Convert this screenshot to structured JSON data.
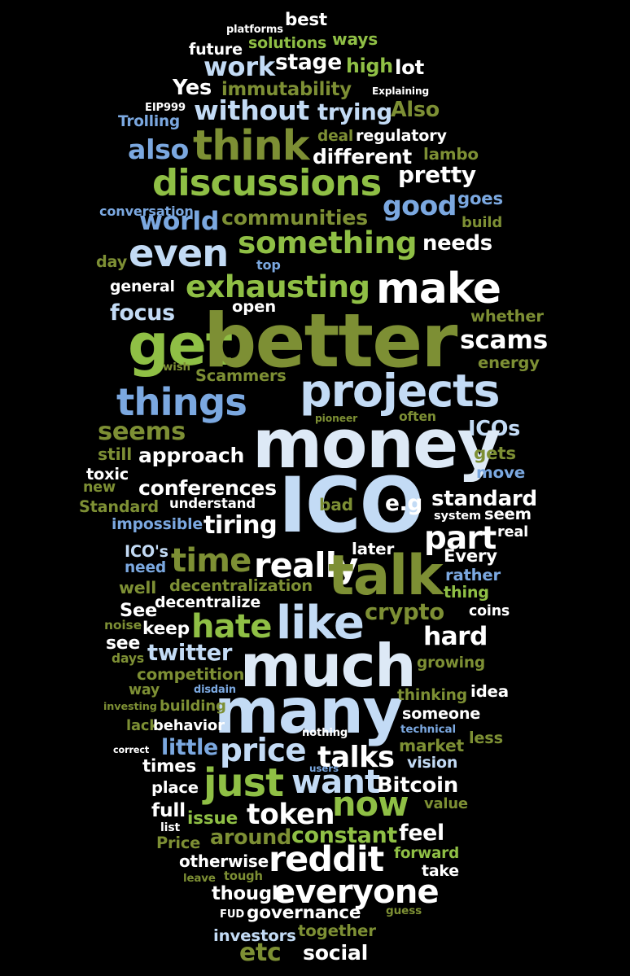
{
  "palette": {
    "background": "#000000",
    "olive": "#7d8f34",
    "green": "#8fbf45",
    "white": "#ffffff",
    "light_blue": "#c3dbf5",
    "blue": "#7ba8e0",
    "pale": "#dde9f6"
  },
  "words": [
    {
      "text": "platforms",
      "color": "white"
    },
    {
      "text": "best",
      "color": "white"
    },
    {
      "text": "future",
      "color": "white"
    },
    {
      "text": "solutions",
      "color": "green"
    },
    {
      "text": "ways",
      "color": "green"
    },
    {
      "text": "work",
      "color": "light_blue"
    },
    {
      "text": "stage",
      "color": "white"
    },
    {
      "text": "high",
      "color": "green"
    },
    {
      "text": "lot",
      "color": "white"
    },
    {
      "text": "Yes",
      "color": "white"
    },
    {
      "text": "immutability",
      "color": "olive"
    },
    {
      "text": "Explaining",
      "color": "white"
    },
    {
      "text": "EIP999",
      "color": "white"
    },
    {
      "text": "without",
      "color": "light_blue"
    },
    {
      "text": "trying",
      "color": "light_blue"
    },
    {
      "text": "Also",
      "color": "olive"
    },
    {
      "text": "Trolling",
      "color": "blue"
    },
    {
      "text": "think",
      "color": "olive"
    },
    {
      "text": "deal",
      "color": "olive"
    },
    {
      "text": "regulatory",
      "color": "white"
    },
    {
      "text": "also",
      "color": "blue"
    },
    {
      "text": "different",
      "color": "white"
    },
    {
      "text": "lambo",
      "color": "olive"
    },
    {
      "text": "discussions",
      "color": "green"
    },
    {
      "text": "pretty",
      "color": "white"
    },
    {
      "text": "conversation",
      "color": "blue"
    },
    {
      "text": "good",
      "color": "blue"
    },
    {
      "text": "goes",
      "color": "blue"
    },
    {
      "text": "world",
      "color": "blue"
    },
    {
      "text": "communities",
      "color": "olive"
    },
    {
      "text": "build",
      "color": "olive"
    },
    {
      "text": "even",
      "color": "light_blue"
    },
    {
      "text": "something",
      "color": "green"
    },
    {
      "text": "needs",
      "color": "white"
    },
    {
      "text": "day",
      "color": "olive"
    },
    {
      "text": "top",
      "color": "blue"
    },
    {
      "text": "general",
      "color": "white"
    },
    {
      "text": "exhausting",
      "color": "green"
    },
    {
      "text": "make",
      "color": "white"
    },
    {
      "text": "focus",
      "color": "light_blue"
    },
    {
      "text": "open",
      "color": "white"
    },
    {
      "text": "whether",
      "color": "olive"
    },
    {
      "text": "get",
      "color": "green"
    },
    {
      "text": "better",
      "color": "olive"
    },
    {
      "text": "scams",
      "color": "white"
    },
    {
      "text": "wish",
      "color": "olive"
    },
    {
      "text": "Scammers",
      "color": "olive"
    },
    {
      "text": "energy",
      "color": "olive"
    },
    {
      "text": "things",
      "color": "blue"
    },
    {
      "text": "projects",
      "color": "light_blue"
    },
    {
      "text": "seems",
      "color": "olive"
    },
    {
      "text": "pioneer",
      "color": "olive"
    },
    {
      "text": "often",
      "color": "olive"
    },
    {
      "text": "ICOs",
      "color": "light_blue"
    },
    {
      "text": "money",
      "color": "pale"
    },
    {
      "text": "still",
      "color": "olive"
    },
    {
      "text": "approach",
      "color": "white"
    },
    {
      "text": "gets",
      "color": "olive"
    },
    {
      "text": "toxic",
      "color": "white"
    },
    {
      "text": "move",
      "color": "blue"
    },
    {
      "text": "new",
      "color": "olive"
    },
    {
      "text": "conferences",
      "color": "white"
    },
    {
      "text": "ICO",
      "color": "light_blue"
    },
    {
      "text": "standard",
      "color": "white"
    },
    {
      "text": "Standard",
      "color": "olive"
    },
    {
      "text": "understand",
      "color": "white"
    },
    {
      "text": "bad",
      "color": "olive"
    },
    {
      "text": "e.g",
      "color": "white"
    },
    {
      "text": "system",
      "color": "white"
    },
    {
      "text": "seem",
      "color": "white"
    },
    {
      "text": "impossible",
      "color": "blue"
    },
    {
      "text": "tiring",
      "color": "white"
    },
    {
      "text": "part",
      "color": "white"
    },
    {
      "text": "real",
      "color": "white"
    },
    {
      "text": "ICO's",
      "color": "light_blue"
    },
    {
      "text": "later",
      "color": "white"
    },
    {
      "text": "need",
      "color": "blue"
    },
    {
      "text": "time",
      "color": "olive"
    },
    {
      "text": "Every",
      "color": "white"
    },
    {
      "text": "really",
      "color": "white"
    },
    {
      "text": "talk",
      "color": "olive"
    },
    {
      "text": "rather",
      "color": "blue"
    },
    {
      "text": "well",
      "color": "olive"
    },
    {
      "text": "decentralization",
      "color": "olive"
    },
    {
      "text": "thing",
      "color": "green"
    },
    {
      "text": "decentralize",
      "color": "white"
    },
    {
      "text": "See",
      "color": "white"
    },
    {
      "text": "crypto",
      "color": "olive"
    },
    {
      "text": "coins",
      "color": "white"
    },
    {
      "text": "noise",
      "color": "olive"
    },
    {
      "text": "keep",
      "color": "white"
    },
    {
      "text": "hate",
      "color": "green"
    },
    {
      "text": "like",
      "color": "light_blue"
    },
    {
      "text": "see",
      "color": "white"
    },
    {
      "text": "hard",
      "color": "white"
    },
    {
      "text": "days",
      "color": "olive"
    },
    {
      "text": "twitter",
      "color": "light_blue"
    },
    {
      "text": "much",
      "color": "pale"
    },
    {
      "text": "growing",
      "color": "olive"
    },
    {
      "text": "competition",
      "color": "olive"
    },
    {
      "text": "way",
      "color": "olive"
    },
    {
      "text": "disdain",
      "color": "blue"
    },
    {
      "text": "many",
      "color": "light_blue"
    },
    {
      "text": "thinking",
      "color": "olive"
    },
    {
      "text": "idea",
      "color": "white"
    },
    {
      "text": "investing",
      "color": "olive"
    },
    {
      "text": "building",
      "color": "olive"
    },
    {
      "text": "someone",
      "color": "white"
    },
    {
      "text": "lack",
      "color": "olive"
    },
    {
      "text": "behavior",
      "color": "white"
    },
    {
      "text": "technical",
      "color": "blue"
    },
    {
      "text": "nothing",
      "color": "white"
    },
    {
      "text": "less",
      "color": "olive"
    },
    {
      "text": "correct",
      "color": "white"
    },
    {
      "text": "little",
      "color": "blue"
    },
    {
      "text": "price",
      "color": "light_blue"
    },
    {
      "text": "market",
      "color": "olive"
    },
    {
      "text": "talks",
      "color": "white"
    },
    {
      "text": "times",
      "color": "white"
    },
    {
      "text": "users",
      "color": "blue"
    },
    {
      "text": "vision",
      "color": "light_blue"
    },
    {
      "text": "place",
      "color": "white"
    },
    {
      "text": "just",
      "color": "green"
    },
    {
      "text": "want",
      "color": "light_blue"
    },
    {
      "text": "Bitcoin",
      "color": "white"
    },
    {
      "text": "full",
      "color": "white"
    },
    {
      "text": "now",
      "color": "green"
    },
    {
      "text": "value",
      "color": "olive"
    },
    {
      "text": "issue",
      "color": "green"
    },
    {
      "text": "token",
      "color": "white"
    },
    {
      "text": "list",
      "color": "white"
    },
    {
      "text": "Price",
      "color": "olive"
    },
    {
      "text": "around",
      "color": "olive"
    },
    {
      "text": "constant",
      "color": "green"
    },
    {
      "text": "feel",
      "color": "white"
    },
    {
      "text": "otherwise",
      "color": "white"
    },
    {
      "text": "reddit",
      "color": "white"
    },
    {
      "text": "forward",
      "color": "green"
    },
    {
      "text": "leave",
      "color": "olive"
    },
    {
      "text": "tough",
      "color": "olive"
    },
    {
      "text": "take",
      "color": "white"
    },
    {
      "text": "though",
      "color": "white"
    },
    {
      "text": "everyone",
      "color": "white"
    },
    {
      "text": "FUD",
      "color": "white"
    },
    {
      "text": "governance",
      "color": "white"
    },
    {
      "text": "guess",
      "color": "olive"
    },
    {
      "text": "investors",
      "color": "light_blue"
    },
    {
      "text": "together",
      "color": "olive"
    },
    {
      "text": "etc",
      "color": "olive"
    },
    {
      "text": "social",
      "color": "white"
    }
  ]
}
